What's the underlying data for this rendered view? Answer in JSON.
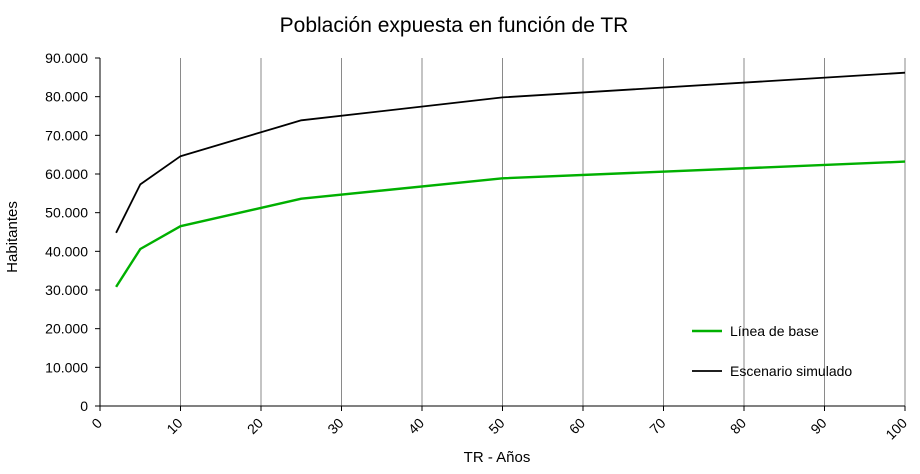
{
  "chart_data": {
    "type": "line",
    "title": "Población expuesta en función de TR",
    "xlabel": "TR - Años",
    "ylabel": "Habitantes",
    "xlim": [
      0,
      100
    ],
    "ylim": [
      0,
      90000
    ],
    "x_ticks": [
      0,
      10,
      20,
      30,
      40,
      50,
      60,
      70,
      80,
      90,
      100
    ],
    "y_ticks": [
      0,
      10000,
      20000,
      30000,
      40000,
      50000,
      60000,
      70000,
      80000,
      90000
    ],
    "x_tick_labels": [
      "0",
      "10",
      "20",
      "30",
      "40",
      "50",
      "60",
      "70",
      "80",
      "90",
      "100"
    ],
    "y_tick_labels": [
      "0",
      "10.000",
      "20.000",
      "30.000",
      "40.000",
      "50.000",
      "60.000",
      "70.000",
      "80.000",
      "90.000"
    ],
    "grid": "vertical",
    "legend_position": "bottom-right",
    "series": [
      {
        "name": "Línea de base",
        "color": "#00b000",
        "x": [
          2,
          5,
          10,
          25,
          50,
          100
        ],
        "y": [
          30800,
          40600,
          46500,
          53600,
          58900,
          63200
        ]
      },
      {
        "name": "Escenario simulado",
        "color": "#000000",
        "x": [
          2,
          5,
          10,
          25,
          50,
          100
        ],
        "y": [
          44800,
          57300,
          64600,
          73900,
          79800,
          86200
        ]
      }
    ]
  }
}
